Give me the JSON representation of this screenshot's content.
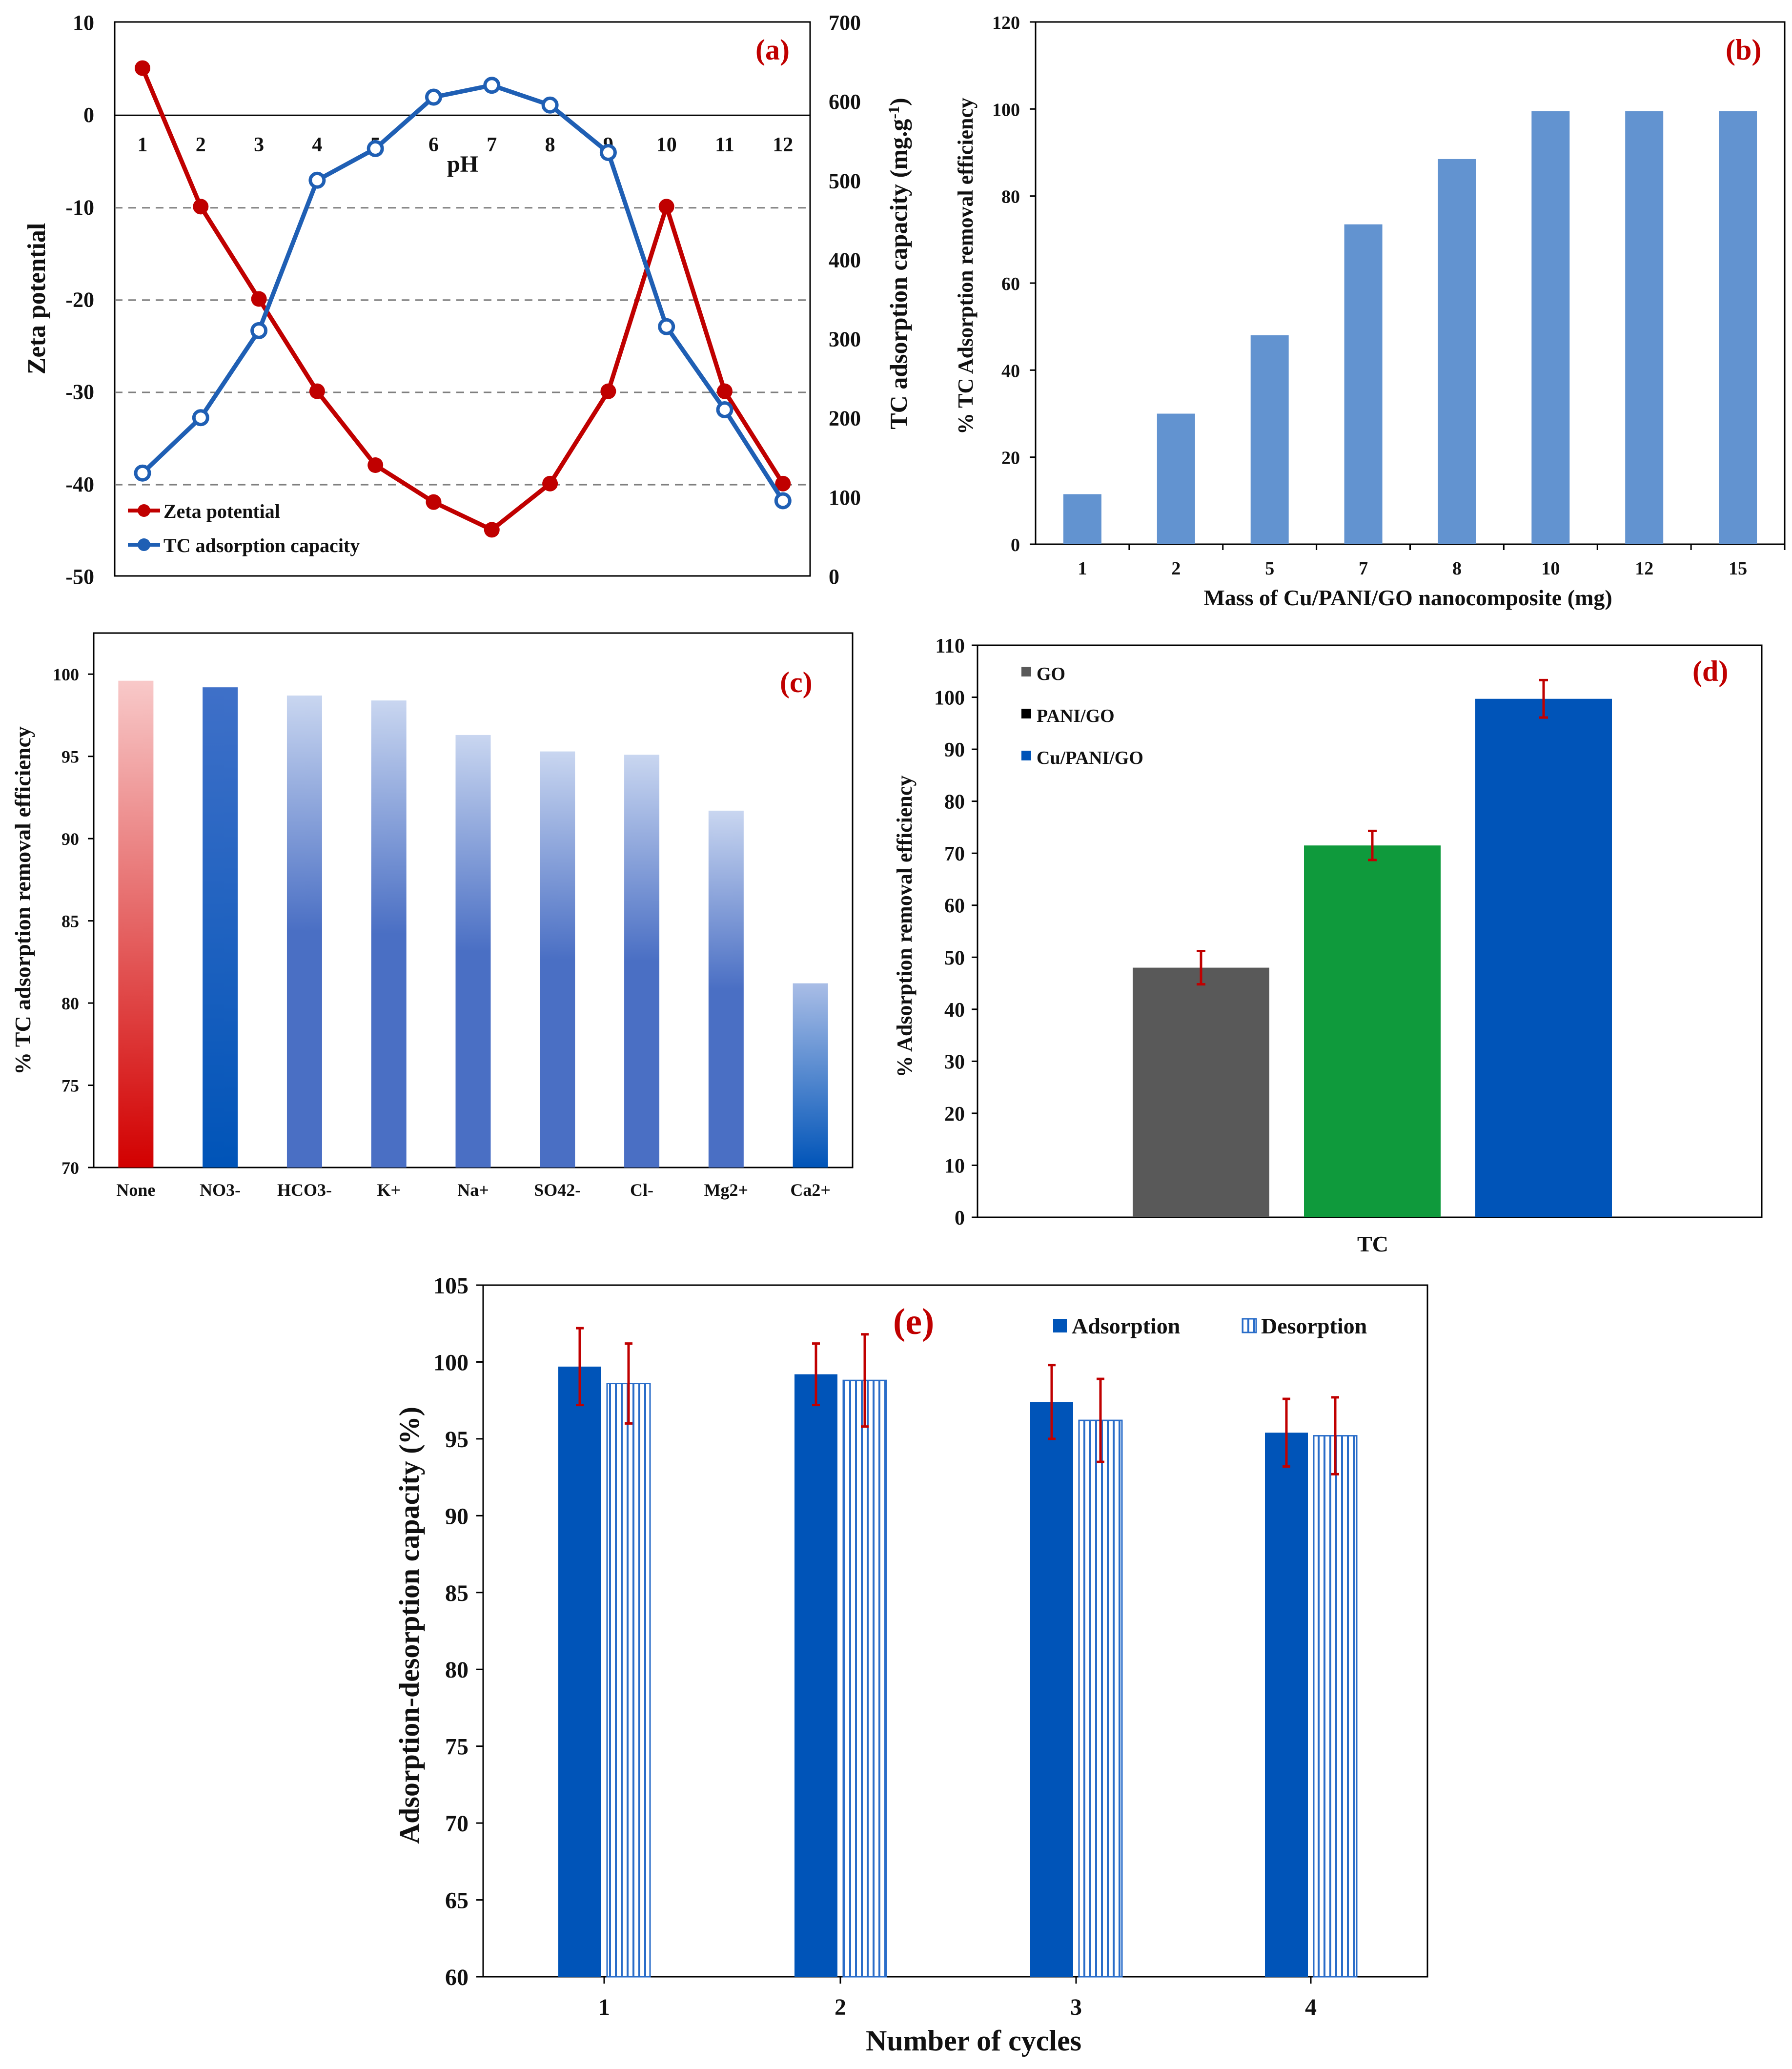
{
  "colors": {
    "red": "#c00000",
    "blue": "#1f5fb4",
    "bar_b": "#6293d0",
    "c_none": "#d20000",
    "c_blue": "#4a6fc4",
    "gray": "#595959",
    "green": "#0f9a3c",
    "deep_blue": "#0054b8",
    "err": "#c00000",
    "label_red": "#c00000"
  },
  "chart_data": [
    {
      "panel": "(a)",
      "type": "line",
      "xlabel": "pH",
      "ylabel": "Zeta  potential",
      "y2label": "TC adsorption capacity (mg.g",
      "y2label_sup": "-1",
      "y2label_end": ")",
      "x": [
        1,
        2,
        3,
        4,
        5,
        6,
        7,
        8,
        9,
        10,
        11,
        12
      ],
      "x_tick_labels": [
        "1",
        "2",
        "3",
        "4",
        "5",
        "6",
        "7",
        "8",
        "9",
        "10",
        "11",
        "12"
      ],
      "ylim": [
        -50,
        10
      ],
      "y_ticks": [
        10,
        0,
        -10,
        -20,
        -30,
        -40,
        -50
      ],
      "y2lim": [
        0,
        700
      ],
      "y2_ticks": [
        700,
        600,
        500,
        400,
        300,
        200,
        100,
        0
      ],
      "series": [
        {
          "name": "Zeta potential",
          "axis": "left",
          "color": "#c00000",
          "values": [
            5,
            -10,
            -20,
            -30,
            -38,
            -42,
            -45,
            -40,
            -30,
            -10,
            -30,
            -40
          ]
        },
        {
          "name": "TC adsorption capacity",
          "axis": "right",
          "color": "#1f5fb4",
          "values": [
            130,
            200,
            310,
            500,
            540,
            605,
            620,
            595,
            535,
            315,
            210,
            95
          ]
        }
      ],
      "legend": "bottom-left",
      "grid": "dashed horizontal at -10, -20, -30, -40"
    },
    {
      "panel": "(b)",
      "type": "bar",
      "xlabel": "Mass of Cu/PANI/GO nanocomposite (mg)",
      "ylabel": "%  TC Adsorption removal efficiency",
      "categories": [
        "1",
        "2",
        "5",
        "7",
        "8",
        "10",
        "12",
        "15"
      ],
      "values": [
        11.5,
        30,
        48,
        73.5,
        88.5,
        99.5,
        99.5,
        99.5
      ],
      "ylim": [
        0,
        120
      ],
      "y_ticks": [
        120,
        100,
        80,
        60,
        40,
        20,
        0
      ],
      "color": "#6293d0"
    },
    {
      "panel": "(c)",
      "type": "bar",
      "xlabel": "",
      "ylabel": "%  TC adsorption removal efficiency",
      "categories": [
        "None",
        "NO3-",
        "HCO3-",
        "K+",
        "Na+",
        "SO42-",
        "Cl-",
        "Mg2+",
        "Ca2+"
      ],
      "values": [
        99.6,
        99.2,
        98.7,
        98.4,
        96.3,
        95.3,
        95.1,
        91.7,
        81.2
      ],
      "ylim": [
        70,
        102.5
      ],
      "y_ticks": [
        100,
        95,
        90,
        85,
        80,
        75,
        70
      ],
      "colors": [
        "#d20000",
        "#0054b8",
        "#4a6fc4",
        "#4a6fc4",
        "#4a6fc4",
        "#4a6fc4",
        "#4a6fc4",
        "#4a6fc4",
        "#0054b8"
      ]
    },
    {
      "panel": "(d)",
      "type": "bar",
      "xlabel": "TC",
      "ylabel": "% Adsorption removal efficiency",
      "categories": [
        "GO",
        "PANI/GO",
        "Cu/PANI/GO"
      ],
      "values": [
        48,
        71.5,
        99.7
      ],
      "errors": [
        3.2,
        2.8,
        3.6
      ],
      "ylim": [
        0,
        110
      ],
      "y_ticks": [
        110,
        100,
        90,
        80,
        70,
        60,
        50,
        40,
        30,
        20,
        10,
        0
      ],
      "colors": [
        "#595959",
        "#0f9a3c",
        "#0054b8"
      ],
      "legend_swatch_colors": [
        "#595959",
        "#000000",
        "#0054b8"
      ],
      "legend": "top-left"
    },
    {
      "panel": "(e)",
      "type": "bar",
      "xlabel": "Number of cycles",
      "ylabel": "Adsorption-desorption capacity  (%)",
      "categories": [
        "1",
        "2",
        "3",
        "4"
      ],
      "series": [
        {
          "name": "Adsorption",
          "values": [
            99.7,
            99.2,
            97.4,
            95.4
          ],
          "errors": [
            2.5,
            2.0,
            2.4,
            2.2
          ]
        },
        {
          "name": "Desorption",
          "values": [
            98.6,
            98.8,
            96.2,
            95.2
          ],
          "errors": [
            2.6,
            3.0,
            2.7,
            2.5
          ]
        }
      ],
      "ylim": [
        60,
        105
      ],
      "y_ticks": [
        105,
        100,
        95,
        90,
        85,
        80,
        75,
        70,
        65,
        60
      ],
      "legend": "top-right"
    }
  ]
}
